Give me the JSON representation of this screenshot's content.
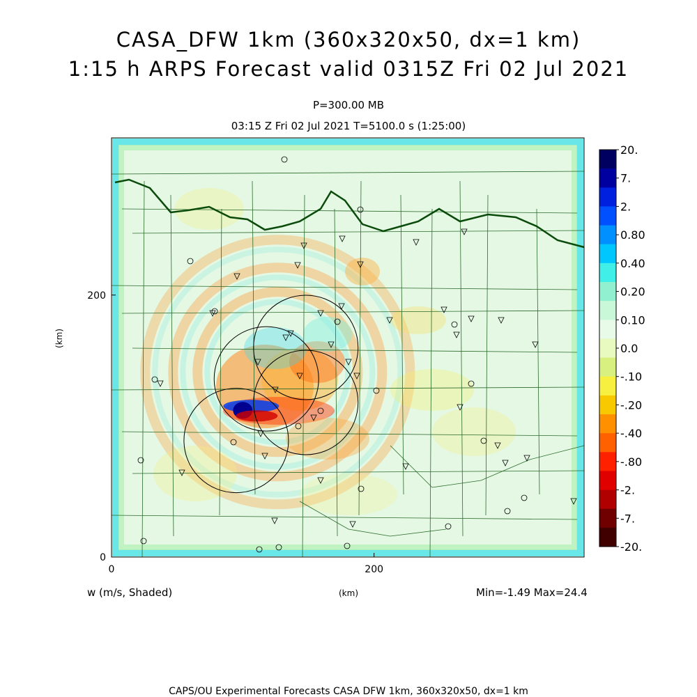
{
  "header": {
    "title_line1": "CASA_DFW 1km (360x320x50, dx=1 km)",
    "title_line2": "1:15 h ARPS Forecast valid 0315Z Fri 02 Jul 2021",
    "level": "P=300.00 MB",
    "valid_time": "03:15 Z Fri 02 Jul 2021    T=5100.0 s (1:25:00)"
  },
  "footer": {
    "field_label": "w (m/s, Shaded)",
    "x_unit": "(km)",
    "y_unit": "(km)",
    "min_max": "Min=-1.49  Max=24.4",
    "credit": "CAPS/OU Experimental Forecasts  CASA DFW 1km, 360x320x50, dx=1 km"
  },
  "chart_data": {
    "type": "heatmap",
    "variable": "w (m/s)",
    "x_unit": "km",
    "y_unit": "km",
    "xlim": [
      0,
      360
    ],
    "ylim": [
      0,
      320
    ],
    "x_ticks": [
      0,
      200
    ],
    "y_ticks": [
      0,
      200
    ],
    "min": -1.49,
    "max": 24.4,
    "colorbar_levels": [
      "20.",
      "7.",
      "2.",
      "0.80",
      "0.40",
      "0.20",
      "0.10",
      "0.0",
      "-.10",
      "-.20",
      "-.40",
      "-.80",
      "-2.",
      "-7.",
      "-20."
    ],
    "colorbar_colors": [
      "#000060",
      "#0000a0",
      "#0020e0",
      "#0050ff",
      "#0090ff",
      "#00c8ff",
      "#40f0e8",
      "#90f0d0",
      "#c8f8d8",
      "#e8fbe8",
      "#e8fac0",
      "#d8f080",
      "#f8f040",
      "#f8c800",
      "#ff9000",
      "#ff6000",
      "#ff2000",
      "#e00000",
      "#b00000",
      "#700000",
      "#400000"
    ],
    "radar_centers_km": [
      [
        148,
        160
      ],
      [
        118,
        136
      ],
      [
        148,
        118
      ],
      [
        95,
        89
      ]
    ],
    "storm_core_km": [
      100,
      112
    ]
  }
}
